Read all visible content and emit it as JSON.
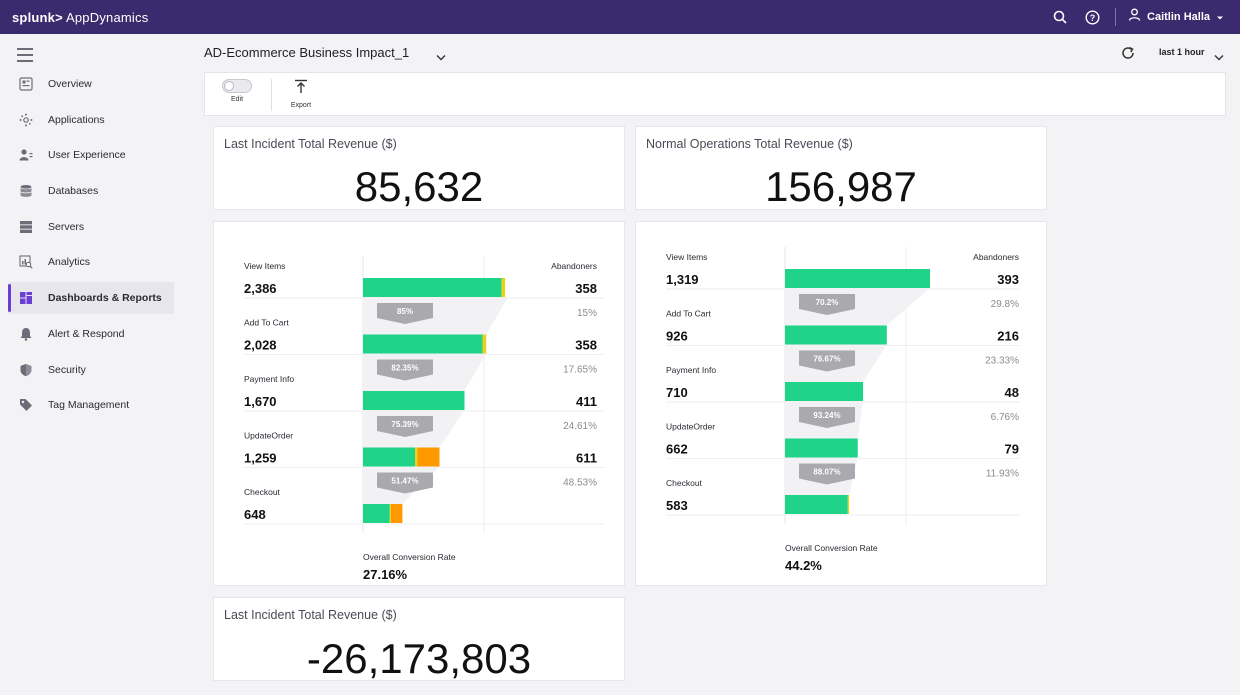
{
  "topbar": {
    "brand_prefix": "splunk>",
    "brand_name": "AppDynamics",
    "user_name": "Caitlin Halla"
  },
  "sidebar": {
    "items": [
      {
        "label": "Overview",
        "icon": "overview-icon",
        "active": false
      },
      {
        "label": "Applications",
        "icon": "applications-icon",
        "active": false
      },
      {
        "label": "User Experience",
        "icon": "user-experience-icon",
        "active": false
      },
      {
        "label": "Databases",
        "icon": "database-icon",
        "active": false
      },
      {
        "label": "Servers",
        "icon": "server-icon",
        "active": false
      },
      {
        "label": "Analytics",
        "icon": "analytics-icon",
        "active": false
      },
      {
        "label": "Dashboards & Reports",
        "icon": "dashboard-icon",
        "active": true
      },
      {
        "label": "Alert & Respond",
        "icon": "bell-icon",
        "active": false
      },
      {
        "label": "Security",
        "icon": "shield-icon",
        "active": false
      },
      {
        "label": "Tag Management",
        "icon": "tag-icon",
        "active": false
      }
    ]
  },
  "header": {
    "title": "AD-Ecommerce Business Impact_1",
    "time_range": "last 1 hour"
  },
  "toolbar": {
    "edit_label": "Edit",
    "export_label": "Export"
  },
  "cards": {
    "incident_revenue": {
      "title": "Last Incident Total Revenue ($)",
      "value": "85,632"
    },
    "normal_revenue": {
      "title": "Normal Operations Total Revenue ($)",
      "value": "156,987"
    },
    "revenue_delta": {
      "title": "Last Incident Total Revenue ($)",
      "value": "-26,173,803"
    }
  },
  "colors": {
    "brand_bar": "#3a2a6e",
    "accent": "#6b3fd1",
    "funnel_green": "#1fd389",
    "funnel_orange": "#ff9900",
    "funnel_yellow": "#e8d21a",
    "conversion_arrow": "#a9a9ae"
  },
  "funnels": [
    {
      "abandoners_label": "Abandoners",
      "overall_label": "Overall Conversion Rate",
      "overall_value": "27.16%",
      "stages": [
        {
          "label": "View Items",
          "value": "2,386",
          "count": 2386,
          "abandoners": "358",
          "abandon_pct": "15%",
          "conversion": "85%",
          "green": 0.955,
          "yellow": 0.025,
          "orange": 0.0
        },
        {
          "label": "Add To Cart",
          "value": "2,028",
          "count": 2028,
          "abandoners": "358",
          "abandon_pct": "17.65%",
          "conversion": "82.35%",
          "green": 0.97,
          "yellow": 0.03,
          "orange": 0.0
        },
        {
          "label": "Payment Info",
          "value": "1,670",
          "count": 1670,
          "abandoners": "411",
          "abandon_pct": "24.61%",
          "conversion": "75.39%",
          "green": 1.0,
          "yellow": 0.0,
          "orange": 0.0
        },
        {
          "label": "UpdateOrder",
          "value": "1,259",
          "count": 1259,
          "abandoners": "611",
          "abandon_pct": "48.53%",
          "conversion": "51.47%",
          "green": 0.68,
          "yellow": 0.03,
          "orange": 0.29
        },
        {
          "label": "Checkout",
          "value": "648",
          "count": 648,
          "abandoners": "",
          "abandon_pct": "",
          "conversion": "",
          "green": 0.68,
          "yellow": 0.03,
          "orange": 0.29
        }
      ]
    },
    {
      "abandoners_label": "Abandoners",
      "overall_label": "Overall Conversion Rate",
      "overall_value": "44.2%",
      "stages": [
        {
          "label": "View Items",
          "value": "1,319",
          "count": 1319,
          "abandoners": "393",
          "abandon_pct": "29.8%",
          "conversion": "70.2%",
          "green": 1.0,
          "yellow": 0.0,
          "orange": 0.0
        },
        {
          "label": "Add To Cart",
          "value": "926",
          "count": 926,
          "abandoners": "216",
          "abandon_pct": "23.33%",
          "conversion": "76.67%",
          "green": 1.0,
          "yellow": 0.0,
          "orange": 0.0
        },
        {
          "label": "Payment Info",
          "value": "710",
          "count": 710,
          "abandoners": "48",
          "abandon_pct": "6.76%",
          "conversion": "93.24%",
          "green": 1.0,
          "yellow": 0.0,
          "orange": 0.0
        },
        {
          "label": "UpdateOrder",
          "value": "662",
          "count": 662,
          "abandoners": "79",
          "abandon_pct": "11.93%",
          "conversion": "88.07%",
          "green": 1.0,
          "yellow": 0.0,
          "orange": 0.0
        },
        {
          "label": "Checkout",
          "value": "583",
          "count": 583,
          "abandoners": "",
          "abandon_pct": "",
          "conversion": "",
          "green": 0.98,
          "yellow": 0.02,
          "orange": 0.0
        }
      ]
    }
  ]
}
